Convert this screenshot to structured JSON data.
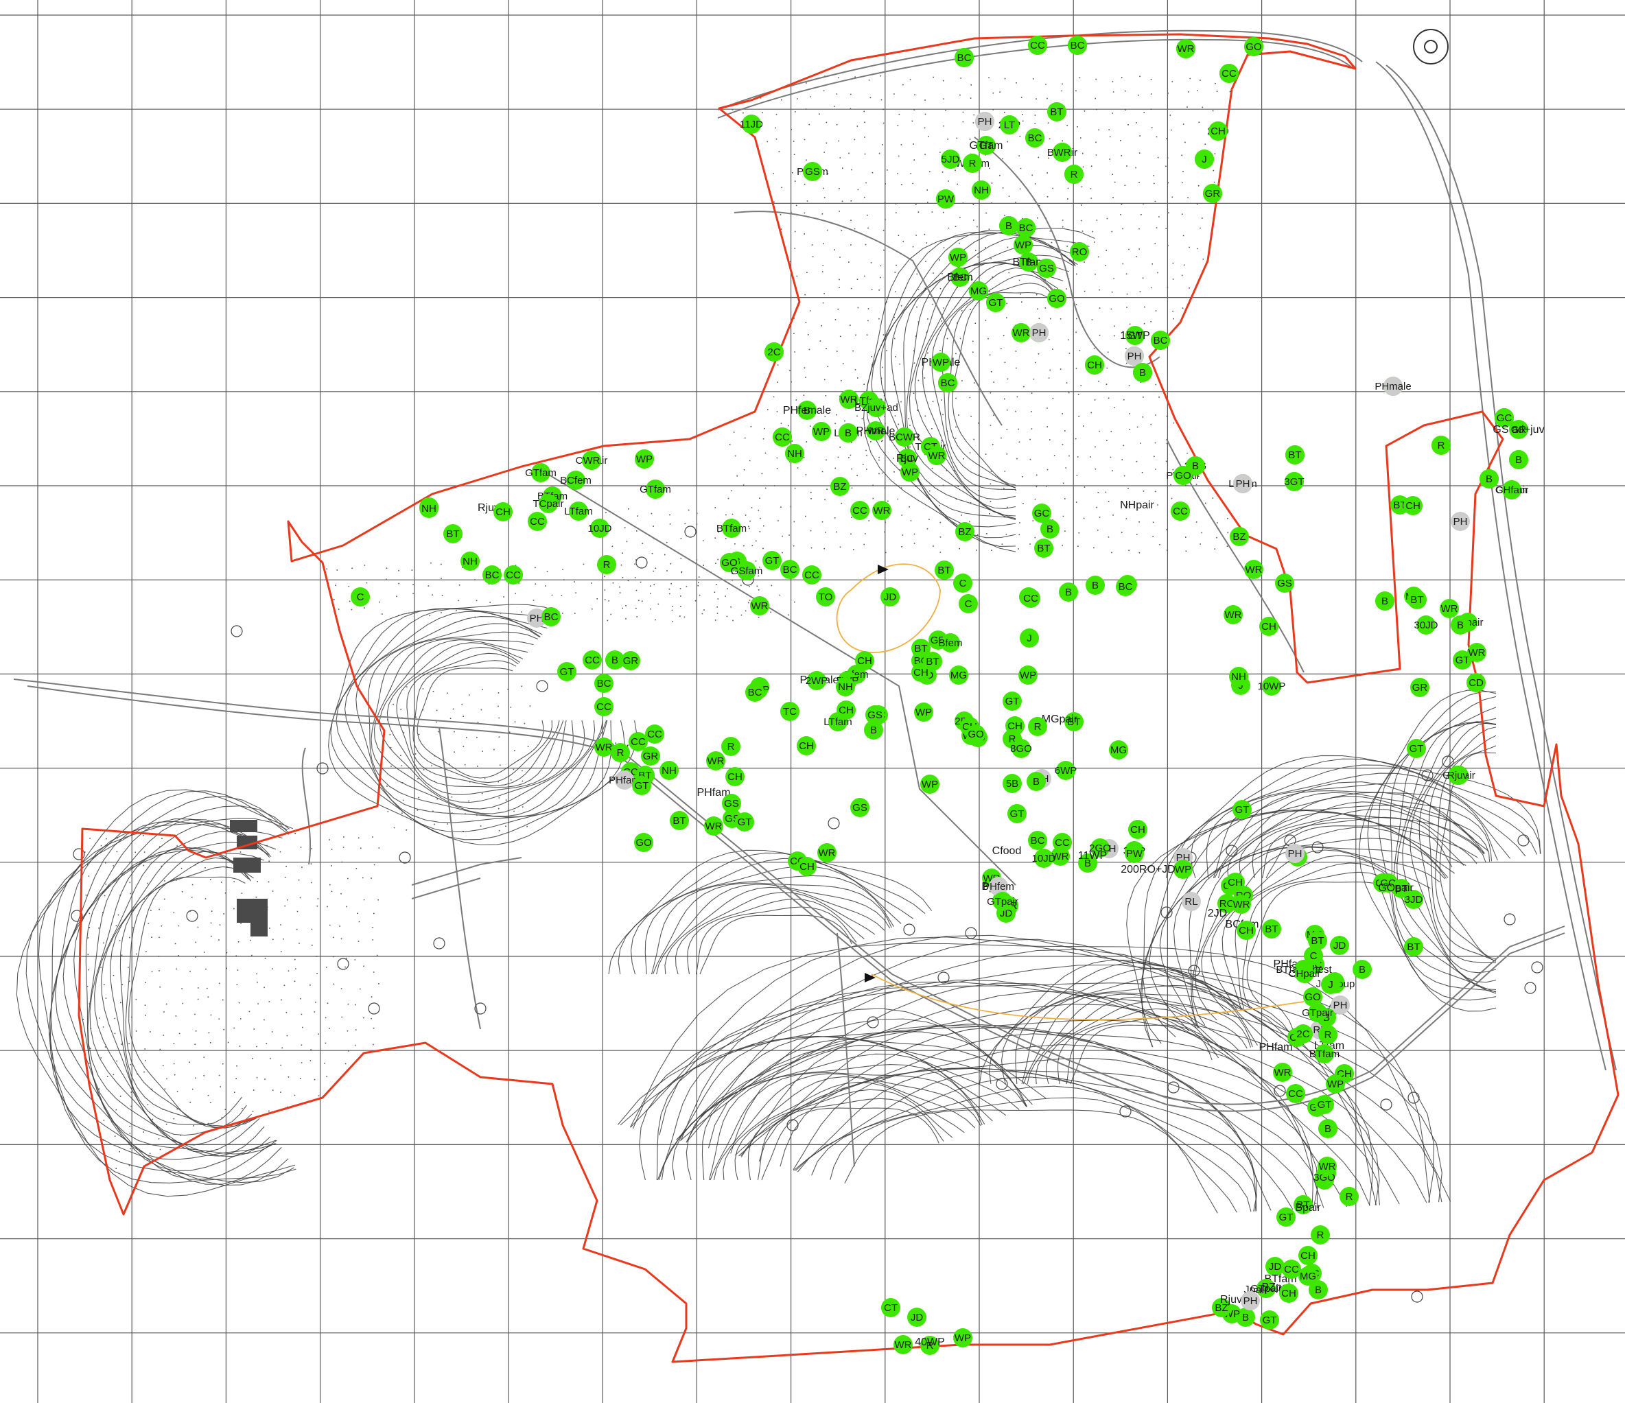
{
  "colors": {
    "background": "#ffffff",
    "grid": "#5a5a5a",
    "boundary": "#e8391d",
    "contour": "#3c3c3c",
    "track": "#7a7a7a",
    "record_marker": "#3ee600",
    "old_record_marker": "#cccccc",
    "stream": "#f0b041",
    "building": "#4a4a4a"
  },
  "icons": {
    "record": "green-circle-marker-icon",
    "old_record": "grey-circle-marker-icon",
    "direction": "black-triangle-arrow-icon",
    "tree": "tree-symbol-icon"
  },
  "labels": [
    {
      "t": "BT",
      "k": "g"
    },
    {
      "t": "GR",
      "k": "g"
    },
    {
      "t": "CH",
      "k": "g"
    },
    {
      "t": "WP",
      "k": "g"
    },
    {
      "t": "B",
      "k": "g"
    },
    {
      "t": "C",
      "k": "g"
    },
    {
      "t": "GR",
      "k": "g"
    },
    {
      "t": "NH",
      "k": "g"
    },
    {
      "t": "2WP",
      "k": "g"
    },
    {
      "t": "CH",
      "k": "g"
    },
    {
      "t": "2RL",
      "k": "p"
    },
    {
      "t": "2GO",
      "k": "g"
    },
    {
      "t": "GT",
      "k": "g"
    },
    {
      "t": "B",
      "k": "g"
    },
    {
      "t": "WRfam",
      "k": "g"
    },
    {
      "t": "BTpair",
      "k": "g"
    },
    {
      "t": "4JD",
      "k": "g"
    },
    {
      "t": "B",
      "k": "g"
    },
    {
      "t": "PHfem",
      "k": "p"
    },
    {
      "t": "LT",
      "k": "g"
    },
    {
      "t": "R",
      "k": "g"
    },
    {
      "t": "BT",
      "k": "g"
    },
    {
      "t": "GS",
      "k": "g"
    },
    {
      "t": "NH",
      "k": "g"
    },
    {
      "t": "GT",
      "k": "g"
    },
    {
      "t": "WR",
      "k": "g"
    },
    {
      "t": "J",
      "k": "g"
    },
    {
      "t": "B",
      "k": "g"
    },
    {
      "t": "WP",
      "k": "g"
    },
    {
      "t": "BC",
      "k": "g"
    },
    {
      "t": "CT",
      "k": "g"
    },
    {
      "t": "R",
      "k": "g"
    },
    {
      "t": "CC",
      "k": "g"
    },
    {
      "t": "BT",
      "k": "g"
    },
    {
      "t": "CH",
      "k": "g"
    },
    {
      "t": "GT",
      "k": "g"
    },
    {
      "t": "CH",
      "k": "g"
    },
    {
      "t": "GR",
      "k": "g"
    },
    {
      "t": "WP",
      "k": "g"
    },
    {
      "t": "B",
      "k": "g"
    },
    {
      "t": "SH",
      "k": "g"
    },
    {
      "t": "PHmale",
      "k": "x"
    },
    {
      "t": "B",
      "k": "g"
    },
    {
      "t": "BT",
      "k": "g"
    },
    {
      "t": "CH",
      "k": "g"
    },
    {
      "t": "J",
      "k": "g"
    },
    {
      "t": "GO",
      "k": "g"
    },
    {
      "t": "B",
      "k": "g"
    },
    {
      "t": "CH",
      "k": "g"
    },
    {
      "t": "GS",
      "k": "g"
    },
    {
      "t": "LTfam",
      "k": "g"
    },
    {
      "t": "WR",
      "k": "g"
    },
    {
      "t": "CC",
      "k": "g"
    },
    {
      "t": "TCpair",
      "k": "g"
    },
    {
      "t": "BC",
      "k": "g"
    },
    {
      "t": "J",
      "k": "g"
    },
    {
      "t": "WP",
      "k": "g"
    },
    {
      "t": "GT",
      "k": "g"
    },
    {
      "t": "WR",
      "k": "g"
    },
    {
      "t": "GR",
      "k": "g"
    },
    {
      "t": "WR",
      "k": "g"
    },
    {
      "t": "WR",
      "k": "g"
    },
    {
      "t": "GR",
      "k": "g"
    },
    {
      "t": "6JD",
      "k": "g"
    },
    {
      "t": "GR",
      "k": "g"
    },
    {
      "t": "2MG",
      "k": "g"
    },
    {
      "t": "PWpair",
      "k": "g"
    },
    {
      "t": "LTfam",
      "k": "g"
    },
    {
      "t": "GT",
      "k": "g"
    },
    {
      "t": "BT",
      "k": "g"
    },
    {
      "t": "CH",
      "k": "g"
    },
    {
      "t": "GOpair",
      "k": "g"
    },
    {
      "t": "CHpair",
      "k": "g"
    },
    {
      "t": "GTfam",
      "k": "g"
    },
    {
      "t": "BCfem",
      "k": "g"
    },
    {
      "t": "BTfam",
      "k": "g"
    },
    {
      "t": "TCpair",
      "k": "g"
    },
    {
      "t": "LTfam",
      "k": "g"
    },
    {
      "t": "CC",
      "k": "g"
    },
    {
      "t": "GR",
      "k": "g"
    },
    {
      "t": "NH",
      "k": "g"
    },
    {
      "t": "Rjuv",
      "k": "x"
    },
    {
      "t": "CH",
      "k": "g"
    },
    {
      "t": "BZ",
      "k": "g"
    },
    {
      "t": "CC",
      "k": "g"
    },
    {
      "t": "WR",
      "k": "g"
    },
    {
      "t": "NHpair",
      "k": "x"
    },
    {
      "t": "BT",
      "k": "g"
    },
    {
      "t": "GC",
      "k": "g"
    },
    {
      "t": "B",
      "k": "g"
    },
    {
      "t": "CH",
      "k": "g"
    },
    {
      "t": "10JD",
      "k": "g"
    },
    {
      "t": "BZ",
      "k": "g"
    },
    {
      "t": "BT",
      "k": "g"
    },
    {
      "t": "BZ",
      "k": "g"
    },
    {
      "t": "PH",
      "k": "p"
    },
    {
      "t": "BTfam",
      "k": "g"
    },
    {
      "t": "B",
      "k": "g"
    },
    {
      "t": "BT",
      "k": "g"
    },
    {
      "t": "NH",
      "k": "g"
    },
    {
      "t": "BC",
      "k": "g"
    },
    {
      "t": "CC",
      "k": "g"
    },
    {
      "t": "R",
      "k": "g"
    },
    {
      "t": "GO",
      "k": "g"
    },
    {
      "t": "GT",
      "k": "g"
    },
    {
      "t": "GSfam",
      "k": "g"
    },
    {
      "t": "BT",
      "k": "g"
    },
    {
      "t": "BC",
      "k": "g"
    },
    {
      "t": "CC",
      "k": "g"
    },
    {
      "t": "C",
      "k": "g"
    },
    {
      "t": "B",
      "k": "g"
    },
    {
      "t": "JD",
      "k": "g"
    },
    {
      "t": "TO",
      "k": "g"
    },
    {
      "t": "BZ",
      "k": "g"
    },
    {
      "t": "CH",
      "k": "g"
    },
    {
      "t": "TCpair",
      "k": "g"
    },
    {
      "t": "B",
      "k": "g"
    },
    {
      "t": "WR",
      "k": "g"
    },
    {
      "t": "BC",
      "k": "g"
    },
    {
      "t": "B",
      "k": "g"
    },
    {
      "t": "C",
      "k": "g"
    },
    {
      "t": "PH",
      "k": "p"
    },
    {
      "t": "WR",
      "k": "g"
    },
    {
      "t": "CC",
      "k": "g"
    },
    {
      "t": "C",
      "k": "g"
    },
    {
      "t": "MG",
      "k": "g"
    },
    {
      "t": "BT",
      "k": "g"
    },
    {
      "t": "CH",
      "k": "g"
    },
    {
      "t": "10WP",
      "k": "g"
    },
    {
      "t": "30JD",
      "k": "g"
    },
    {
      "t": "B",
      "k": "g"
    },
    {
      "t": "WR",
      "k": "g"
    },
    {
      "t": "GT",
      "k": "g"
    },
    {
      "t": "GR",
      "k": "g"
    },
    {
      "t": "J",
      "k": "g"
    },
    {
      "t": "WP",
      "k": "g"
    },
    {
      "t": "WR",
      "k": "g"
    },
    {
      "t": "GS",
      "k": "g"
    },
    {
      "t": "J",
      "k": "g"
    },
    {
      "t": "NH",
      "k": "g"
    },
    {
      "t": "Bfem",
      "k": "g"
    },
    {
      "t": "BC",
      "k": "g"
    },
    {
      "t": "JD",
      "k": "g"
    },
    {
      "t": "MG",
      "k": "g"
    },
    {
      "t": "BT",
      "k": "g"
    },
    {
      "t": "CC",
      "k": "g"
    },
    {
      "t": "CC",
      "k": "g"
    },
    {
      "t": "BC",
      "k": "g"
    },
    {
      "t": "B",
      "k": "g"
    },
    {
      "t": "GR",
      "k": "g"
    },
    {
      "t": "GT",
      "k": "g"
    },
    {
      "t": "BC",
      "k": "g"
    },
    {
      "t": "B",
      "k": "g"
    },
    {
      "t": "GR",
      "k": "g"
    },
    {
      "t": "CH",
      "k": "g"
    },
    {
      "t": "WR",
      "k": "g"
    },
    {
      "t": "CD",
      "k": "g"
    },
    {
      "t": "BT",
      "k": "g"
    },
    {
      "t": "Bfem",
      "k": "g"
    },
    {
      "t": "PHmale",
      "k": "x"
    },
    {
      "t": "5WP",
      "k": "g"
    },
    {
      "t": "2WP",
      "k": "g"
    },
    {
      "t": "CH",
      "k": "g"
    },
    {
      "t": "7WP",
      "k": "g"
    },
    {
      "t": "BC",
      "k": "g"
    },
    {
      "t": "NH",
      "k": "g"
    },
    {
      "t": "BC",
      "k": "g"
    },
    {
      "t": "CH",
      "k": "g"
    },
    {
      "t": "TC",
      "k": "g"
    },
    {
      "t": "LTfam",
      "k": "g"
    },
    {
      "t": "GT",
      "k": "g"
    },
    {
      "t": "BT",
      "k": "g"
    },
    {
      "t": "CH",
      "k": "g"
    },
    {
      "t": "MGpair",
      "k": "x"
    },
    {
      "t": "CD",
      "k": "g"
    },
    {
      "t": "WP",
      "k": "g"
    },
    {
      "t": "2BT",
      "k": "g"
    },
    {
      "t": "WR",
      "k": "g"
    },
    {
      "t": "R",
      "k": "g"
    },
    {
      "t": "CH",
      "k": "g"
    },
    {
      "t": "B",
      "k": "g"
    },
    {
      "t": "GS",
      "k": "g"
    },
    {
      "t": "GO",
      "k": "g"
    },
    {
      "t": "GT",
      "k": "g"
    },
    {
      "t": "GCpair",
      "k": "g"
    },
    {
      "t": "Rjuv",
      "k": "g"
    },
    {
      "t": "CC",
      "k": "g"
    },
    {
      "t": "GR",
      "k": "g"
    },
    {
      "t": "WR",
      "k": "g"
    },
    {
      "t": "R",
      "k": "g"
    },
    {
      "t": "CH",
      "k": "g"
    },
    {
      "t": "R",
      "k": "g"
    },
    {
      "t": "Rjuv",
      "k": "x"
    },
    {
      "t": "WR",
      "k": "g"
    },
    {
      "t": "R",
      "k": "g"
    },
    {
      "t": "CC",
      "k": "g"
    },
    {
      "t": "CH",
      "k": "g"
    },
    {
      "t": "8GO",
      "k": "g"
    },
    {
      "t": "CC",
      "k": "g"
    },
    {
      "t": "PHfam",
      "k": "p"
    },
    {
      "t": "NH",
      "k": "g"
    },
    {
      "t": "BT",
      "k": "g"
    },
    {
      "t": "GT",
      "k": "g"
    },
    {
      "t": "6WP",
      "k": "g"
    },
    {
      "t": "5B",
      "k": "g"
    },
    {
      "t": "WP",
      "k": "g"
    },
    {
      "t": "PH",
      "k": "p"
    },
    {
      "t": "GT",
      "k": "g"
    },
    {
      "t": "B",
      "k": "g"
    },
    {
      "t": "MG",
      "k": "g"
    },
    {
      "t": "GS",
      "k": "g"
    },
    {
      "t": "PHfam",
      "k": "x"
    },
    {
      "t": "GS",
      "k": "g"
    },
    {
      "t": "WR",
      "k": "g"
    },
    {
      "t": "GS",
      "k": "g"
    },
    {
      "t": "GT",
      "k": "g"
    },
    {
      "t": "BT",
      "k": "g"
    },
    {
      "t": "GO",
      "k": "g"
    },
    {
      "t": "WR",
      "k": "g"
    },
    {
      "t": "CC",
      "k": "g"
    },
    {
      "t": "CH",
      "k": "g"
    },
    {
      "t": "J",
      "k": "g"
    },
    {
      "t": "PH",
      "k": "p"
    },
    {
      "t": "GT",
      "k": "g"
    },
    {
      "t": "3WP",
      "k": "g"
    },
    {
      "t": "PW",
      "k": "g"
    },
    {
      "t": "CH",
      "k": "g"
    },
    {
      "t": "PH",
      "k": "p"
    },
    {
      "t": "Cfood",
      "k": "x"
    },
    {
      "t": "BC",
      "k": "g"
    },
    {
      "t": "WR",
      "k": "g"
    },
    {
      "t": "B",
      "k": "g"
    },
    {
      "t": "WR",
      "k": "g"
    },
    {
      "t": "JD",
      "k": "g"
    },
    {
      "t": "PH",
      "k": "p"
    },
    {
      "t": "WP",
      "k": "g"
    },
    {
      "t": "200RO+JD",
      "k": "x"
    },
    {
      "t": "Bpair",
      "k": "x"
    },
    {
      "t": "B",
      "k": "g"
    },
    {
      "t": "PHfem",
      "k": "p"
    },
    {
      "t": "BCfem",
      "k": "x"
    },
    {
      "t": "GS",
      "k": "g"
    },
    {
      "t": "CH",
      "k": "g"
    },
    {
      "t": "GTpair",
      "k": "g"
    },
    {
      "t": "CC",
      "k": "g"
    },
    {
      "t": "WR",
      "k": "g"
    },
    {
      "t": "10JD",
      "k": "g"
    },
    {
      "t": "2GO",
      "k": "g"
    },
    {
      "t": "11WP",
      "k": "x"
    },
    {
      "t": "RL",
      "k": "p"
    },
    {
      "t": "CH",
      "k": "g"
    },
    {
      "t": "GO",
      "k": "g"
    },
    {
      "t": "3JD",
      "k": "g"
    },
    {
      "t": "BT",
      "k": "g"
    },
    {
      "t": "RO",
      "k": "g"
    },
    {
      "t": "2JD",
      "k": "x"
    },
    {
      "t": "RO",
      "k": "g"
    },
    {
      "t": "BT",
      "k": "g"
    },
    {
      "t": "CH",
      "k": "g"
    },
    {
      "t": "WR",
      "k": "g"
    },
    {
      "t": "PHfam",
      "k": "x"
    },
    {
      "t": "MG",
      "k": "g"
    },
    {
      "t": "BT",
      "k": "g"
    },
    {
      "t": "GOpair",
      "k": "x"
    },
    {
      "t": "JD",
      "k": "g"
    },
    {
      "t": "BC",
      "k": "g"
    },
    {
      "t": "C",
      "k": "g"
    },
    {
      "t": "B",
      "k": "g"
    },
    {
      "t": "GT",
      "k": "g"
    },
    {
      "t": "BTfam+nest",
      "k": "g"
    },
    {
      "t": "CHpair",
      "k": "g"
    },
    {
      "t": "PH",
      "k": "p"
    },
    {
      "t": "GO",
      "k": "g"
    },
    {
      "t": "LTfam",
      "k": "x"
    },
    {
      "t": "CC",
      "k": "g"
    },
    {
      "t": "RL",
      "k": "p"
    },
    {
      "t": "BT",
      "k": "g"
    },
    {
      "t": "B",
      "k": "g"
    },
    {
      "t": "R",
      "k": "g"
    },
    {
      "t": "JDgroup",
      "k": "g"
    },
    {
      "t": "GTpair",
      "k": "g"
    },
    {
      "t": "J",
      "k": "g"
    },
    {
      "t": "PHfam",
      "k": "x"
    },
    {
      "t": "2C",
      "k": "g"
    },
    {
      "t": "BTfam",
      "k": "g"
    },
    {
      "t": "WR",
      "k": "g"
    },
    {
      "t": "CC",
      "k": "g"
    },
    {
      "t": "CH",
      "k": "g"
    },
    {
      "t": "WP",
      "k": "g"
    },
    {
      "t": "GS",
      "k": "g"
    },
    {
      "t": "GT",
      "k": "g"
    },
    {
      "t": "B",
      "k": "g"
    },
    {
      "t": "WP",
      "k": "g"
    },
    {
      "t": "H",
      "k": "g"
    },
    {
      "t": "3GO",
      "k": "g"
    },
    {
      "t": "WR",
      "k": "g"
    },
    {
      "t": "GT",
      "k": "g"
    },
    {
      "t": "R",
      "k": "g"
    },
    {
      "t": "JD",
      "k": "g"
    },
    {
      "t": "BT",
      "k": "g"
    },
    {
      "t": "R",
      "k": "g"
    },
    {
      "t": "Bpair",
      "k": "x"
    },
    {
      "t": "B",
      "k": "g"
    },
    {
      "t": "BTfam",
      "k": "x"
    },
    {
      "t": "CH",
      "k": "g"
    },
    {
      "t": "GTpair",
      "k": "g"
    },
    {
      "t": "BC",
      "k": "g"
    },
    {
      "t": "CC",
      "k": "g"
    },
    {
      "t": "MG",
      "k": "g"
    },
    {
      "t": "Jpair",
      "k": "x"
    },
    {
      "t": "BZpair",
      "k": "x"
    },
    {
      "t": "CH",
      "k": "g"
    },
    {
      "t": "GT",
      "k": "g"
    },
    {
      "t": "B",
      "k": "g"
    },
    {
      "t": "WP",
      "k": "g"
    },
    {
      "t": "BZ",
      "k": "g"
    },
    {
      "t": "Rjuv",
      "k": "x"
    },
    {
      "t": "PH",
      "k": "p"
    },
    {
      "t": "CT",
      "k": "g"
    },
    {
      "t": "JD",
      "k": "g"
    },
    {
      "t": "R",
      "k": "g"
    },
    {
      "t": "40WP",
      "k": "x"
    },
    {
      "t": "WR",
      "k": "g"
    },
    {
      "t": "WP",
      "k": "g"
    },
    {
      "t": "BC",
      "k": "g"
    },
    {
      "t": "CC",
      "k": "g"
    },
    {
      "t": "BC",
      "k": "g"
    },
    {
      "t": "WR",
      "k": "g"
    },
    {
      "t": "GO",
      "k": "g"
    },
    {
      "t": "CC",
      "k": "g"
    },
    {
      "t": "11JD",
      "k": "g"
    },
    {
      "t": "PH",
      "k": "p"
    },
    {
      "t": "LT",
      "k": "g"
    },
    {
      "t": "BC",
      "k": "g"
    },
    {
      "t": "BT",
      "k": "g"
    },
    {
      "t": "CH",
      "k": "g"
    },
    {
      "t": "GTfam",
      "k": "x"
    },
    {
      "t": "5JD",
      "k": "g"
    },
    {
      "t": "R",
      "k": "g"
    },
    {
      "t": "WR",
      "k": "g"
    },
    {
      "t": "J",
      "k": "g"
    },
    {
      "t": "R",
      "k": "g"
    },
    {
      "t": "GS",
      "k": "g"
    },
    {
      "t": "NH",
      "k": "g"
    },
    {
      "t": "PW",
      "k": "g"
    },
    {
      "t": "GR",
      "k": "g"
    },
    {
      "t": "B",
      "k": "g"
    },
    {
      "t": "BC",
      "k": "g"
    },
    {
      "t": "WP",
      "k": "g"
    },
    {
      "t": "RO",
      "k": "g"
    },
    {
      "t": "WP",
      "k": "g"
    },
    {
      "t": "BTfam",
      "k": "x"
    },
    {
      "t": "GS",
      "k": "g"
    },
    {
      "t": "Bfem",
      "k": "x"
    },
    {
      "t": "MG",
      "k": "g"
    },
    {
      "t": "GT",
      "k": "g"
    },
    {
      "t": "GO",
      "k": "g"
    },
    {
      "t": "WR",
      "k": "g"
    },
    {
      "t": "PH",
      "k": "p"
    },
    {
      "t": "15WP",
      "k": "x"
    },
    {
      "t": "BC",
      "k": "g"
    },
    {
      "t": "2C",
      "k": "g"
    },
    {
      "t": "CH",
      "k": "g"
    },
    {
      "t": "PH",
      "k": "p"
    },
    {
      "t": "B",
      "k": "g"
    },
    {
      "t": "WP",
      "k": "g"
    },
    {
      "t": "BC",
      "k": "g"
    },
    {
      "t": "WR",
      "k": "g"
    },
    {
      "t": "LTfam",
      "k": "g"
    },
    {
      "t": "BZjuv+ad",
      "k": "g"
    },
    {
      "t": "PHmale",
      "k": "p"
    },
    {
      "t": "PHfemale",
      "k": "x"
    },
    {
      "t": "CC",
      "k": "g"
    },
    {
      "t": "WP",
      "k": "g"
    },
    {
      "t": "B",
      "k": "g"
    },
    {
      "t": "PHmale",
      "k": "x"
    },
    {
      "t": "BCWR",
      "k": "g"
    },
    {
      "t": "CT",
      "k": "g"
    },
    {
      "t": "Rjuv",
      "k": "x"
    },
    {
      "t": "WR",
      "k": "g"
    },
    {
      "t": "NH",
      "k": "g"
    },
    {
      "t": "WP",
      "k": "g"
    },
    {
      "t": "GC",
      "k": "g"
    },
    {
      "t": "GS ad+juv",
      "k": "x"
    },
    {
      "t": "R",
      "k": "g"
    },
    {
      "t": "WP",
      "k": "g"
    },
    {
      "t": "GTfam",
      "k": "g"
    },
    {
      "t": "B",
      "k": "g"
    },
    {
      "t": "BT",
      "k": "g"
    },
    {
      "t": "B",
      "k": "g"
    },
    {
      "t": "GO",
      "k": "g"
    },
    {
      "t": "PH",
      "k": "p"
    },
    {
      "t": "3GT",
      "k": "g"
    },
    {
      "t": "CC",
      "k": "g"
    },
    {
      "t": "B",
      "k": "g"
    },
    {
      "t": "CHfam",
      "k": "g"
    },
    {
      "t": "WR",
      "k": "g"
    }
  ]
}
